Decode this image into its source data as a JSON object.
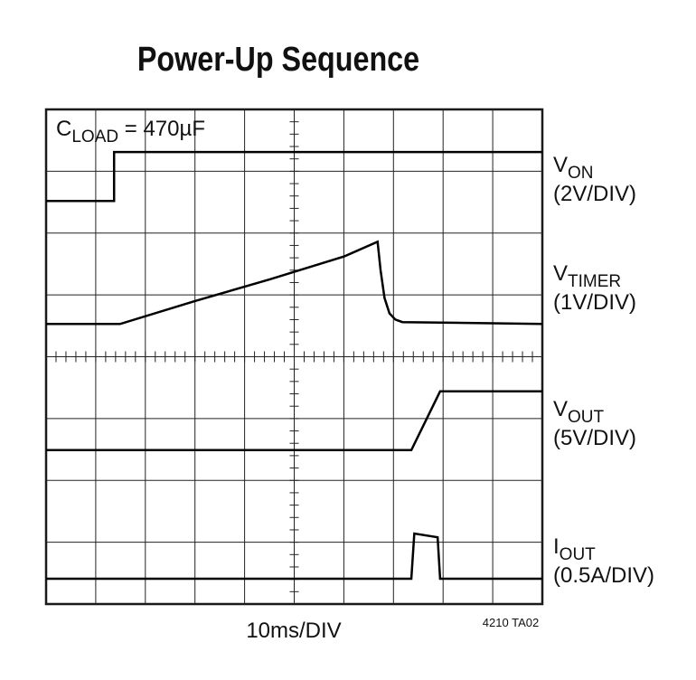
{
  "chart_data": {
    "type": "scope",
    "title": "Power-Up Sequence",
    "annotation": {
      "name": "C",
      "subscript": "LOAD",
      "text": " = 470µF"
    },
    "x_label": "10ms/DIV",
    "figure_id": "4210 TA02",
    "xlim": [
      0,
      100
    ],
    "ylim": [
      0,
      8
    ],
    "xticks": [
      0,
      10,
      20,
      30,
      40,
      50,
      60,
      70,
      80,
      90,
      100
    ],
    "yticks": [
      0,
      1,
      2,
      3,
      4,
      5,
      6,
      7,
      8
    ],
    "grid": true,
    "series": [
      {
        "name": "V",
        "subscript": "ON",
        "scale": "(2V/DIV)",
        "color": "#000000",
        "x": [
          0,
          13.7,
          13.7,
          100
        ],
        "values": [
          6.52,
          6.52,
          7.31,
          7.31
        ]
      },
      {
        "name": "V",
        "subscript": "TIMER",
        "scale": "(1V/DIV)",
        "color": "#000000",
        "x": [
          0,
          14.9,
          30,
          45,
          60,
          66.8,
          67.4,
          68.2,
          69.2,
          70.4,
          71.8,
          100
        ],
        "values": [
          4.53,
          4.53,
          4.9,
          5.25,
          5.62,
          5.86,
          5.4,
          4.95,
          4.7,
          4.6,
          4.56,
          4.53
        ]
      },
      {
        "name": "V",
        "subscript": "OUT",
        "scale": "(5V/DIV)",
        "color": "#000000",
        "x": [
          0,
          73.6,
          79.4,
          100
        ],
        "values": [
          2.49,
          2.49,
          3.44,
          3.44
        ]
      },
      {
        "name": "I",
        "subscript": "OUT",
        "scale": "(0.5A/DIV)",
        "color": "#000000",
        "x": [
          0,
          73.6,
          74.2,
          78.9,
          79.4,
          100
        ],
        "values": [
          0.41,
          0.41,
          1.14,
          1.08,
          0.41,
          0.41
        ]
      }
    ]
  }
}
